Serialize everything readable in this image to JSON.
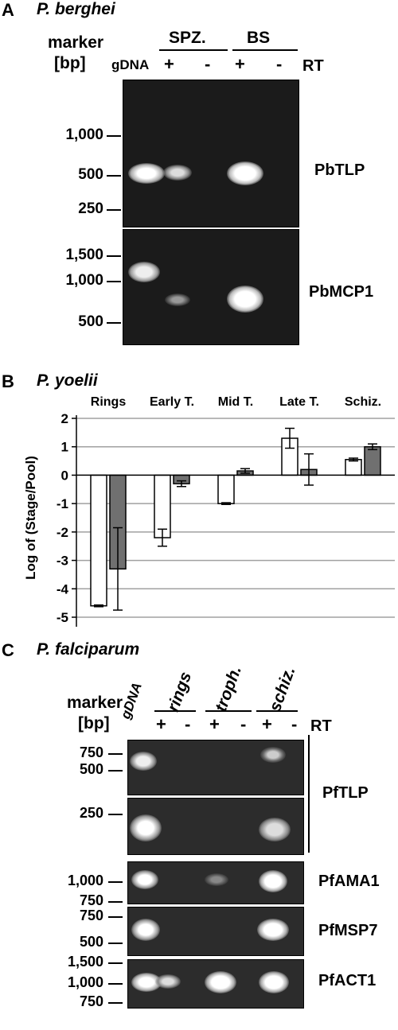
{
  "panelA": {
    "letter": "A",
    "species": "P. berghei",
    "marker_line1": "marker",
    "marker_line2": "[bp]",
    "gdna": "gDNA",
    "groups": [
      "SPZ.",
      "BS"
    ],
    "rt_signs": [
      "+",
      "-",
      "+",
      "-"
    ],
    "rt": "RT",
    "gel1": {
      "ticks": [
        "1,000",
        "500",
        "250"
      ],
      "gene": "PbTLP"
    },
    "gel2": {
      "ticks": [
        "1,500",
        "1,000",
        "500"
      ],
      "gene": "PbMCP1"
    }
  },
  "panelB": {
    "letter": "B",
    "species": "P. yoelii",
    "chart_data": {
      "type": "bar",
      "categories": [
        "Rings",
        "Early T.",
        "Mid T.",
        "Late T.",
        "Schiz."
      ],
      "series": [
        {
          "color": "#ffffff",
          "values": [
            -4.6,
            -2.2,
            -1.0,
            1.3,
            0.55
          ],
          "errors": [
            0.03,
            0.3,
            0.03,
            0.35,
            0.05
          ]
        },
        {
          "color": "#707070",
          "values": [
            -3.3,
            -0.3,
            0.15,
            0.2,
            1.0
          ],
          "errors": [
            1.45,
            0.1,
            0.08,
            0.55,
            0.1
          ]
        }
      ],
      "ylabel": "Log of (Stage/Pool)",
      "ylim": [
        -5,
        2
      ],
      "yticks": [
        "2",
        "1",
        "0",
        "-1",
        "-2",
        "-3",
        "-4",
        "-5"
      ],
      "grid": true
    }
  },
  "panelC": {
    "letter": "C",
    "species": "P. falciparum",
    "marker_line1": "marker",
    "marker_line2": "[bp]",
    "gdna": "gDNA",
    "groups": [
      "rings",
      "troph.",
      "schiz."
    ],
    "rt_signs": [
      "+",
      "-",
      "+",
      "-",
      "+",
      "-"
    ],
    "rt": "RT",
    "gels": [
      {
        "ticks": [
          "750",
          "500"
        ],
        "gene": "PfTLP"
      },
      {
        "ticks": [
          "250"
        ]
      },
      {
        "ticks": [
          "1,000",
          "750"
        ],
        "gene": "PfAMA1"
      },
      {
        "ticks": [
          "750",
          "500"
        ],
        "gene": "PfMSP7"
      },
      {
        "ticks": [
          "1,500",
          "1,000",
          "750"
        ],
        "gene": "PfACT1"
      }
    ]
  }
}
